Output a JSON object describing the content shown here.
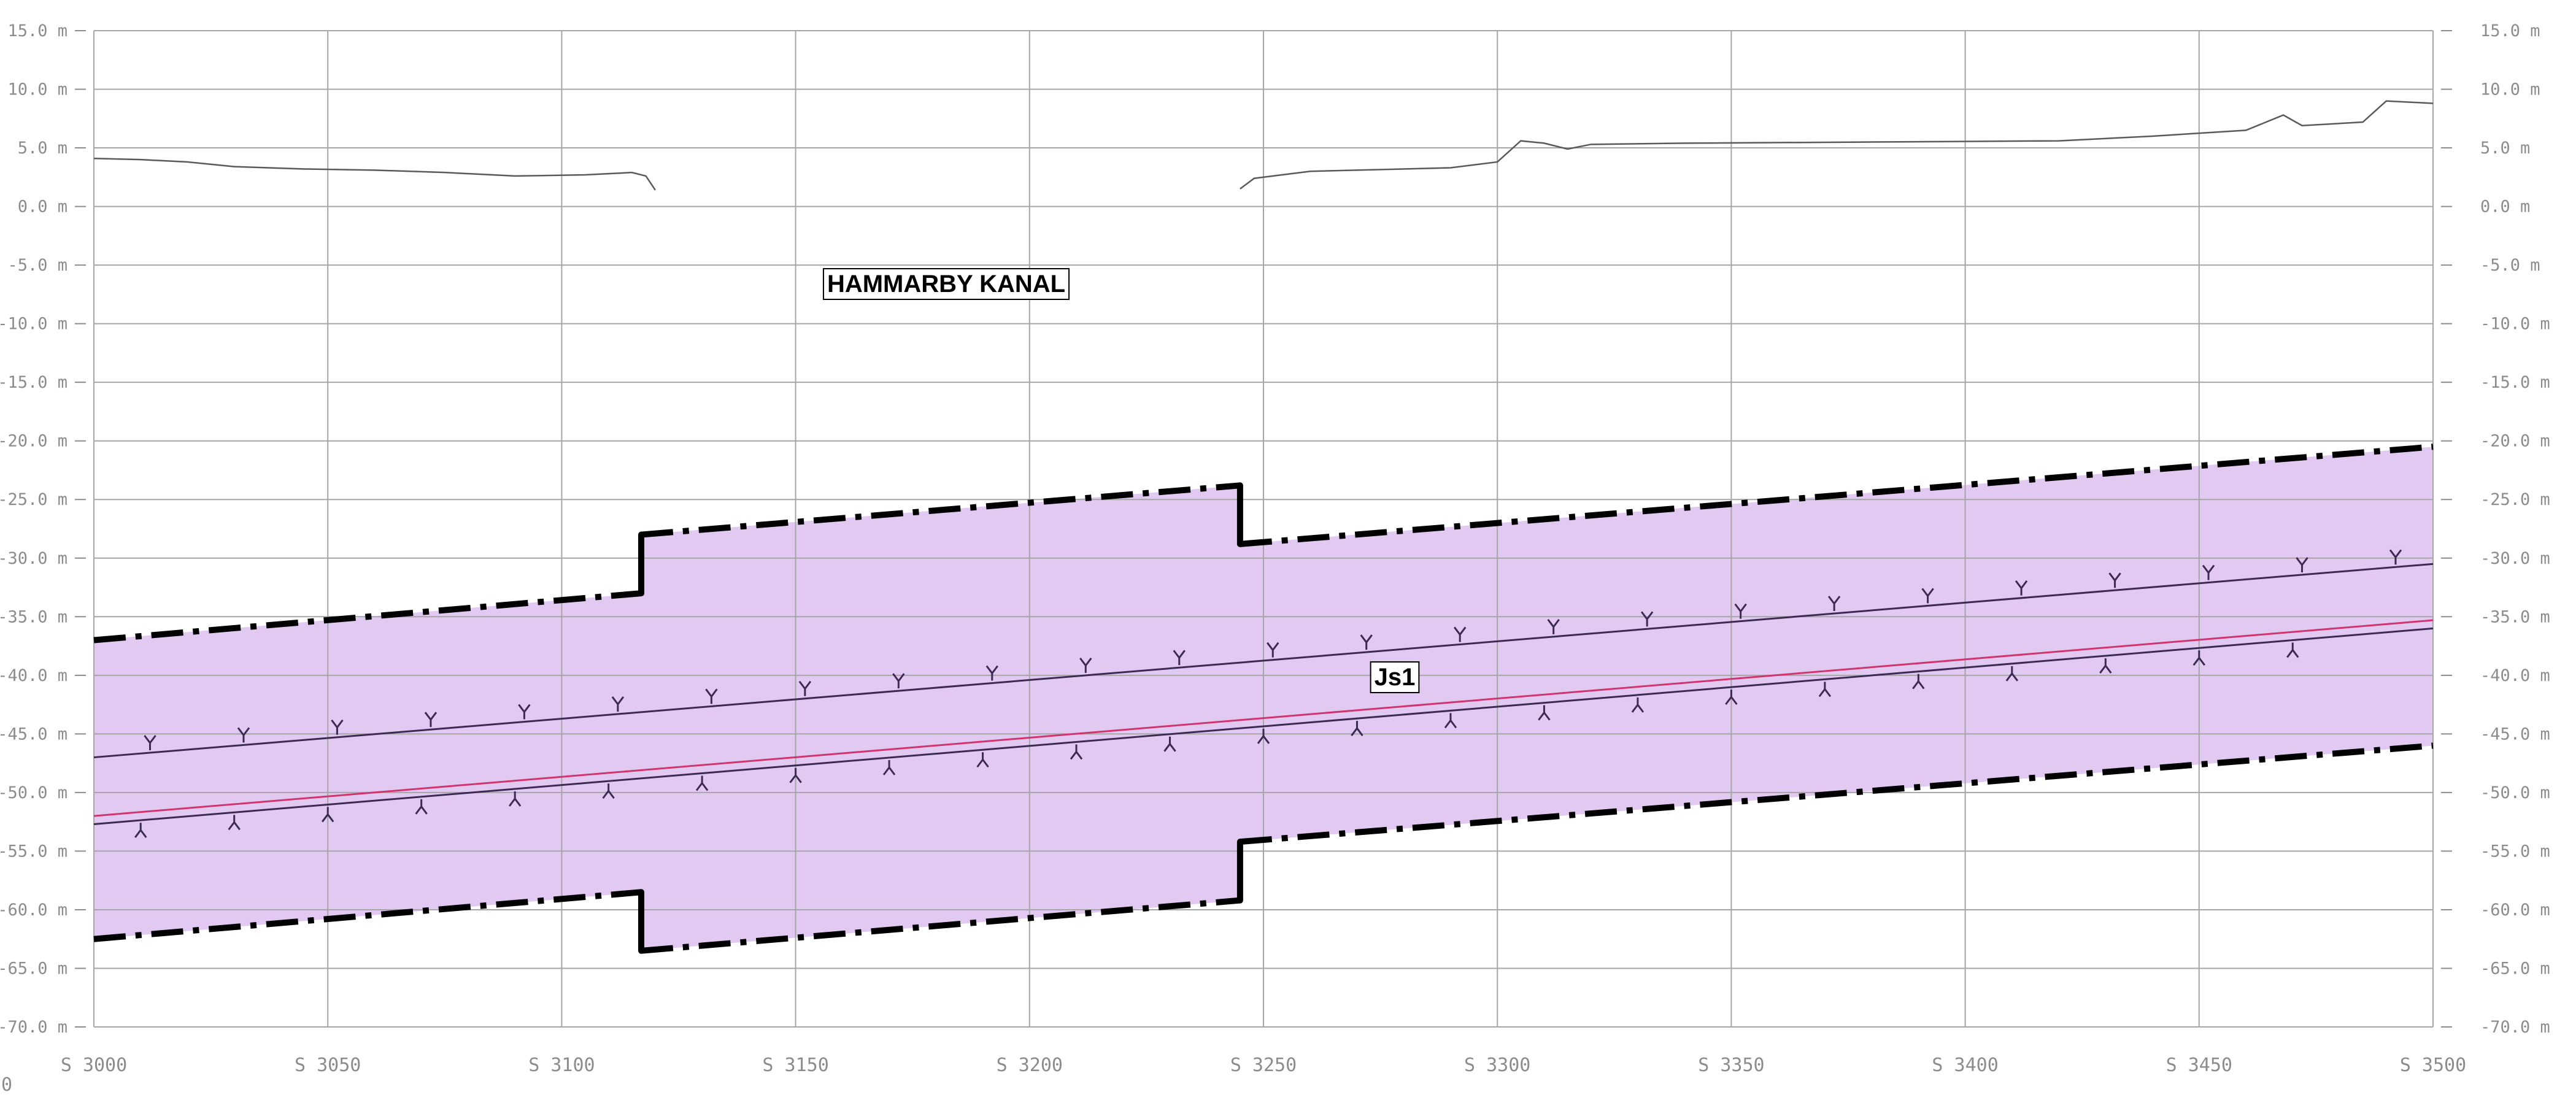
{
  "corner_label": "0",
  "labels": {
    "canal": "HAMMARBY KANAL",
    "zone": "Js1"
  },
  "colors": {
    "zone_fill": "#e2c9f2",
    "grid": "#a6a6a6",
    "boundary": "#000000",
    "alignment_line": "#d0356f",
    "rock_line": "#3b2a52",
    "terrain": "#5a5a5a"
  },
  "chart_data": {
    "type": "line",
    "x_axis": {
      "min": 3000,
      "max": 3500,
      "ticks": [
        3000,
        3050,
        3100,
        3150,
        3200,
        3250,
        3300,
        3350,
        3400,
        3450,
        3500
      ],
      "tick_labels": [
        "S 3000",
        "S 3050",
        "S 3100",
        "S 3150",
        "S 3200",
        "S 3250",
        "S 3300",
        "S 3350",
        "S 3400",
        "S 3450",
        "S 3500"
      ]
    },
    "y_axis": {
      "min": -70,
      "max": 15,
      "ticks": [
        15,
        10,
        5,
        0,
        -5,
        -10,
        -15,
        -20,
        -25,
        -30,
        -35,
        -40,
        -45,
        -50,
        -55,
        -60,
        -65,
        -70
      ],
      "tick_labels": [
        "15.0 m",
        "10.0 m",
        "5.0 m",
        "0.0 m",
        "-5.0 m",
        "-10.0 m",
        "-15.0 m",
        "-20.0 m",
        "-25.0 m",
        "-30.0 m",
        "-35.0 m",
        "-40.0 m",
        "-45.0 m",
        "-50.0 m",
        "-55.0 m",
        "-60.0 m",
        "-65.0 m",
        "-70.0 m"
      ],
      "grid": true
    },
    "series": [
      {
        "role": "terrain",
        "segments": [
          [
            [
              3000,
              4.1
            ],
            [
              3010,
              4.0
            ],
            [
              3020,
              3.8
            ],
            [
              3030,
              3.4
            ],
            [
              3045,
              3.2
            ],
            [
              3060,
              3.1
            ],
            [
              3075,
              2.9
            ],
            [
              3090,
              2.6
            ],
            [
              3105,
              2.7
            ],
            [
              3115,
              2.9
            ],
            [
              3118,
              2.6
            ],
            [
              3120,
              1.4
            ]
          ],
          [
            [
              3245,
              1.5
            ],
            [
              3248,
              2.4
            ],
            [
              3260,
              3.0
            ],
            [
              3290,
              3.3
            ],
            [
              3300,
              3.8
            ],
            [
              3305,
              5.6
            ],
            [
              3310,
              5.4
            ],
            [
              3315,
              4.9
            ],
            [
              3320,
              5.3
            ],
            [
              3340,
              5.4
            ],
            [
              3380,
              5.5
            ],
            [
              3420,
              5.6
            ],
            [
              3440,
              6.0
            ],
            [
              3460,
              6.5
            ],
            [
              3468,
              7.8
            ],
            [
              3472,
              6.9
            ],
            [
              3485,
              7.2
            ],
            [
              3490,
              9.0
            ],
            [
              3500,
              8.8
            ]
          ]
        ]
      },
      {
        "role": "zone-upper-boundary",
        "values": [
          [
            3000,
            -37.0
          ],
          [
            3117,
            -33.0
          ],
          [
            3117,
            -28.0
          ],
          [
            3245,
            -23.8
          ],
          [
            3245,
            -28.8
          ],
          [
            3500,
            -20.5
          ]
        ]
      },
      {
        "role": "zone-lower-boundary",
        "values": [
          [
            3000,
            -62.5
          ],
          [
            3117,
            -58.5
          ],
          [
            3117,
            -63.5
          ],
          [
            3245,
            -59.2
          ],
          [
            3245,
            -54.2
          ],
          [
            3500,
            -46.0
          ]
        ]
      },
      {
        "role": "rock-surface-upper",
        "values": [
          [
            3000,
            -47.0
          ],
          [
            3500,
            -30.5
          ]
        ]
      },
      {
        "role": "alignment",
        "values": [
          [
            3000,
            -52.0
          ],
          [
            3500,
            -35.3
          ]
        ]
      },
      {
        "role": "rock-surface-lower",
        "values": [
          [
            3000,
            -52.7
          ],
          [
            3500,
            -36.0
          ]
        ]
      }
    ],
    "annotations": [
      "HAMMARBY KANAL",
      "Js1"
    ]
  }
}
